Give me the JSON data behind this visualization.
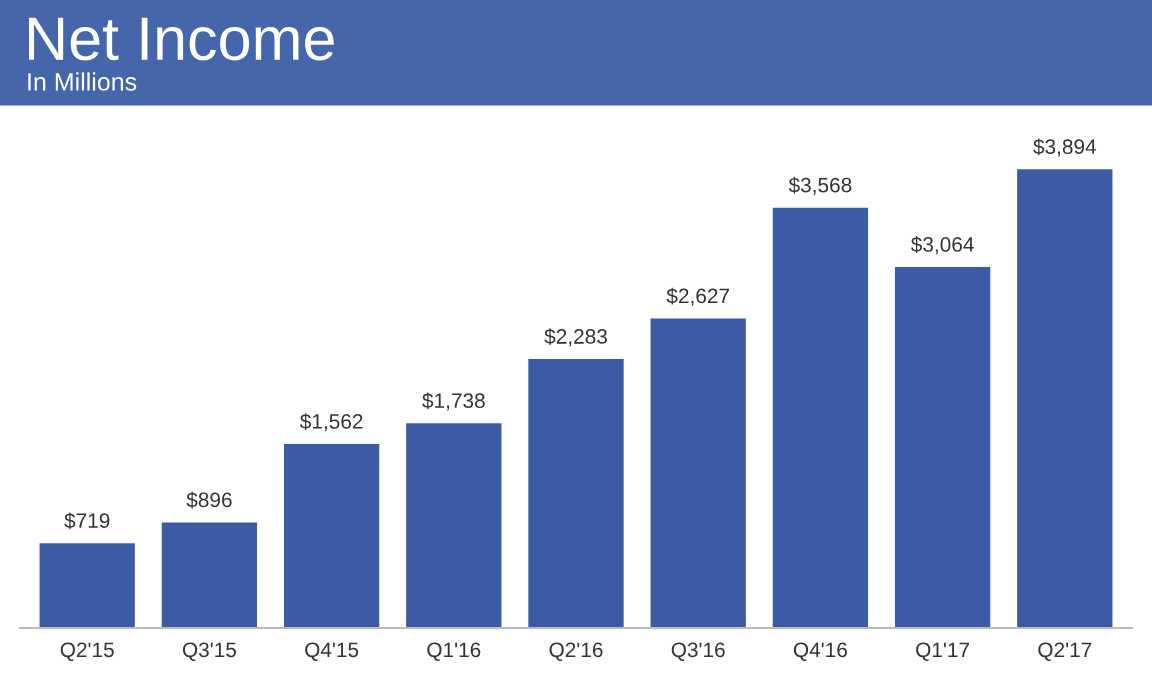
{
  "chart_data": {
    "type": "bar",
    "title": "Net Income",
    "subtitle": "In Millions",
    "categories": [
      "Q2'15",
      "Q3'15",
      "Q4'15",
      "Q1'16",
      "Q2'16",
      "Q3'16",
      "Q4'16",
      "Q1'17",
      "Q2'17"
    ],
    "values": [
      719,
      896,
      1562,
      1738,
      2283,
      2627,
      3568,
      3064,
      3894
    ],
    "value_labels": [
      "$719",
      "$896",
      "$1,562",
      "$1,738",
      "$2,283",
      "$2,627",
      "$3,568",
      "$3,064",
      "$3,894"
    ],
    "color": "#3b5ba5",
    "grid": false,
    "legend": false
  }
}
